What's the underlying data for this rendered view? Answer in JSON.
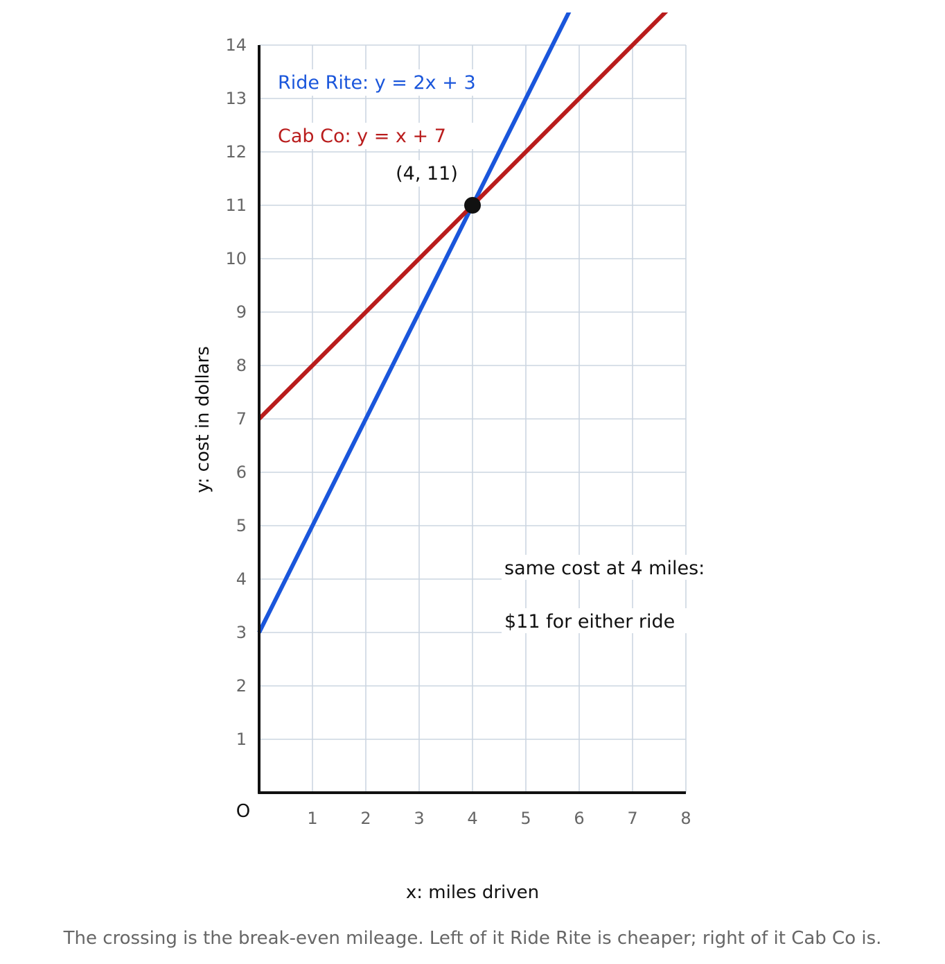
{
  "chart_data": {
    "type": "line",
    "xlabel": "x: miles driven",
    "ylabel": "y: cost in dollars",
    "origin_label": "O",
    "xlim": [
      0,
      8
    ],
    "ylim": [
      0,
      14
    ],
    "x_ticks": [
      1,
      2,
      3,
      4,
      5,
      6,
      7,
      8
    ],
    "y_ticks": [
      1,
      2,
      3,
      4,
      5,
      6,
      7,
      8,
      9,
      10,
      11,
      12,
      13,
      14
    ],
    "grid": true,
    "series": [
      {
        "name": "Ride Rite",
        "equation": "y = 2x + 3",
        "slope": 2,
        "intercept": 3,
        "color": "#1a56db"
      },
      {
        "name": "Cab Co",
        "equation": "y = x + 7",
        "slope": 1,
        "intercept": 7,
        "color": "#b91c1c"
      }
    ],
    "legend_labels": [
      "Ride Rite:  y = 2x + 3",
      "Cab Co:  y = x + 7"
    ],
    "intersection": {
      "x": 4,
      "y": 11,
      "label": "(4, 11)"
    },
    "annotations": [
      "same cost at 4 miles:",
      "$11 for either ride"
    ],
    "caption": "The crossing is the break-even mileage. Left of it Ride Rite is cheaper; right of it Cab Co is."
  }
}
